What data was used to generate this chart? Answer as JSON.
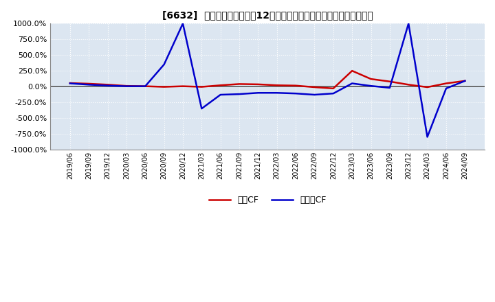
{
  "title": "[6632]  キャッシュフローの12か月移動合計の対前年同期増減率の推移",
  "legend_labels": [
    "営業CF",
    "フリーCF"
  ],
  "line_colors": [
    "#cc0000",
    "#0000cc"
  ],
  "ylim": [
    -1000,
    1000
  ],
  "yticks": [
    -1000,
    -750,
    -500,
    -250,
    0,
    250,
    500,
    750,
    1000
  ],
  "ytick_labels": [
    "-1000.0%",
    "-750.0%",
    "-500.0%",
    "-250.0%",
    "0.0%",
    "250.0%",
    "500.0%",
    "750.0%",
    "1000.0%"
  ],
  "background_color": "#ffffff",
  "plot_bg_color": "#dce6f1",
  "grid_color": "#ffffff",
  "x_labels": [
    "2019/06",
    "2019/09",
    "2019/12",
    "2020/03",
    "2020/06",
    "2020/09",
    "2020/12",
    "2021/03",
    "2021/06",
    "2021/09",
    "2021/12",
    "2022/03",
    "2022/06",
    "2022/09",
    "2022/12",
    "2023/03",
    "2023/06",
    "2023/09",
    "2023/12",
    "2024/03",
    "2024/06",
    "2024/09"
  ],
  "operating_cf": [
    55,
    45,
    30,
    10,
    5,
    -5,
    5,
    -5,
    20,
    40,
    35,
    20,
    15,
    -10,
    -30,
    250,
    120,
    80,
    30,
    -10,
    50,
    90
  ],
  "free_cf": [
    50,
    30,
    15,
    5,
    5,
    350,
    1000,
    -350,
    -130,
    -120,
    -100,
    -100,
    -110,
    -130,
    -110,
    50,
    10,
    -20,
    1000,
    -800,
    -30,
    90
  ]
}
